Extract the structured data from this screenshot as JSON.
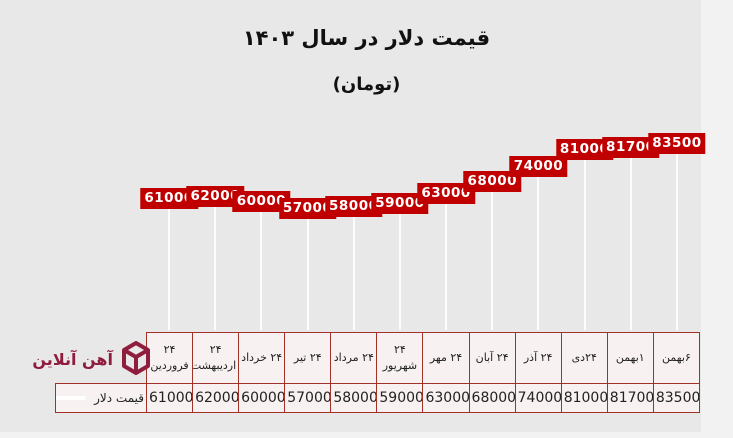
{
  "header": {
    "title": "قیمت دلار در سال ۱۴۰۳",
    "subtitle": "(تومان)"
  },
  "chart_data": {
    "type": "line",
    "title": "قیمت دلار در سال ۱۴۰۳",
    "subtitle": "(تومان)",
    "series_name": "قیمت دلار",
    "categories": [
      "۲۴ فروردین",
      "۲۴ اردیبهشت",
      "۲۴ خرداد",
      "۲۴ تیر",
      "۲۴ مرداد",
      "۲۴ شهریور",
      "۲۴ مهر",
      "۲۴ آبان",
      "۲۴ آذر",
      "۲۴دی",
      "۱بهمن",
      "۶بهمن"
    ],
    "values": [
      61000,
      62000,
      60000,
      57000,
      58000,
      59000,
      63000,
      68000,
      74000,
      81000,
      81700,
      83500
    ],
    "data_labels": true,
    "drop_lines": true,
    "grid": false,
    "legend_position": "table-row-left",
    "ylim": [
      0,
      90000
    ],
    "label_bg_color": "#c00000",
    "label_text_color": "#ffffff",
    "drop_line_color": "#ffffff"
  },
  "table": {
    "legend_label": "قیمت دلار",
    "border_color": "#a03228",
    "cell_bg": "#f7f2f1"
  },
  "branding": {
    "logo_text": "آهن آنلاین",
    "logo_color": "#8e1d3e"
  }
}
